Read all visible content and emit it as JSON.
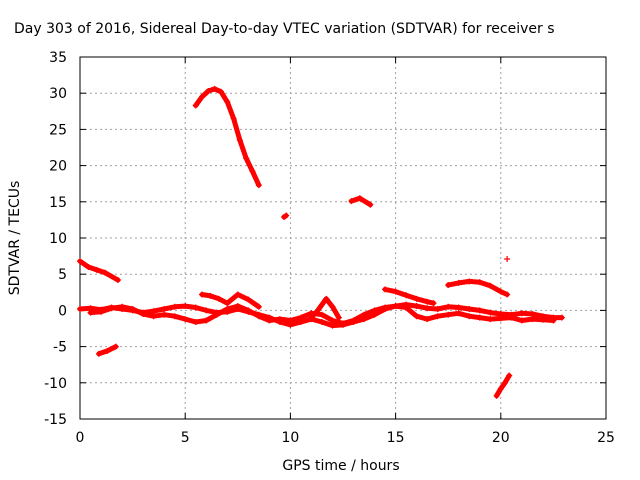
{
  "chart_data": {
    "type": "scatter",
    "title": "Day 303 of 2016, Sidereal Day-to-day VTEC variation (SDTVAR) for receiver s",
    "xlabel": "GPS time / hours",
    "ylabel": "SDTVAR / TECUs",
    "xlim": [
      0,
      25
    ],
    "ylim": [
      -15,
      35
    ],
    "xticks": [
      "0",
      "5",
      "10",
      "15",
      "20",
      "25"
    ],
    "yticks": [
      "-15",
      "-10",
      "-5",
      "0",
      "5",
      "10",
      "15",
      "20",
      "25",
      "30",
      "35"
    ],
    "grid": true,
    "marker": "+",
    "marker_color": "#ff0000",
    "segments": [
      {
        "x": [
          0.0,
          0.4,
          0.8,
          1.2,
          1.8
        ],
        "y": [
          6.8,
          6.0,
          5.6,
          5.2,
          4.2
        ]
      },
      {
        "x": [
          0.9,
          1.3,
          1.7
        ],
        "y": [
          -6.0,
          -5.6,
          -5.0
        ]
      },
      {
        "x": [
          5.5,
          5.8,
          6.1,
          6.4,
          6.7,
          7.0,
          7.3,
          7.6,
          7.9,
          8.2,
          8.5
        ],
        "y": [
          28.3,
          29.5,
          30.3,
          30.6,
          30.2,
          28.8,
          26.5,
          23.5,
          21.0,
          19.2,
          17.3
        ]
      },
      {
        "x": [
          9.7,
          9.8
        ],
        "y": [
          12.9,
          13.1
        ]
      },
      {
        "x": [
          12.9,
          13.3,
          13.8
        ],
        "y": [
          15.1,
          15.5,
          14.6
        ]
      },
      {
        "x": [
          20.3
        ],
        "y": [
          7.1
        ]
      },
      {
        "x": [
          19.8,
          20.0,
          20.2,
          20.4
        ],
        "y": [
          -11.8,
          -10.8,
          -10.0,
          -9.0
        ]
      },
      {
        "x": [
          17.5,
          18.0,
          18.5,
          19.0,
          19.5,
          20.0,
          20.3
        ],
        "y": [
          3.5,
          3.8,
          4.0,
          3.9,
          3.4,
          2.6,
          2.2
        ]
      },
      {
        "x": [
          14.5,
          15.0,
          15.5,
          16.0,
          16.5,
          16.8
        ],
        "y": [
          2.9,
          2.6,
          2.1,
          1.6,
          1.2,
          1.0
        ]
      },
      {
        "x": [
          5.8,
          6.2,
          6.6,
          7.0,
          7.5,
          8.0,
          8.5
        ],
        "y": [
          2.2,
          2.0,
          1.6,
          1.0,
          2.2,
          1.5,
          0.5
        ]
      },
      {
        "x": [
          11.0,
          11.3,
          11.7,
          12.0,
          12.3
        ],
        "y": [
          -1.0,
          0.0,
          1.6,
          0.5,
          -1.0
        ]
      },
      {
        "x": [
          0.0,
          0.5,
          1.0,
          1.5,
          2.0,
          2.5,
          3.0,
          3.5,
          4.0,
          4.5,
          5.0,
          5.5,
          6.0,
          6.5,
          7.0,
          7.5,
          8.0,
          8.5,
          9.0,
          9.5,
          10.0,
          10.5,
          11.0,
          11.5,
          12.0,
          12.5,
          13.0,
          13.5,
          14.0,
          14.5,
          15.0,
          15.5,
          16.0,
          16.5,
          17.0,
          17.5,
          18.0,
          18.5,
          19.0,
          19.5,
          20.0,
          20.5,
          21.0,
          21.5,
          22.0,
          22.5,
          22.9
        ],
        "y": [
          0.2,
          0.3,
          0.1,
          0.4,
          0.2,
          0.0,
          -0.3,
          -0.1,
          0.2,
          0.5,
          0.6,
          0.4,
          0.0,
          -0.3,
          -0.2,
          0.2,
          -0.2,
          -0.6,
          -1.0,
          -1.6,
          -2.0,
          -1.6,
          -1.2,
          -1.6,
          -2.1,
          -2.0,
          -1.6,
          -1.2,
          -0.6,
          0.2,
          0.6,
          0.8,
          0.6,
          0.3,
          0.2,
          0.5,
          0.4,
          0.2,
          0.0,
          -0.3,
          -0.5,
          -0.6,
          -0.4,
          -0.5,
          -0.8,
          -1.0,
          -1.0
        ]
      },
      {
        "x": [
          0.5,
          1.0,
          1.5,
          2.0,
          2.5,
          3.0,
          3.5,
          4.0,
          4.5,
          5.0,
          5.5,
          6.0,
          6.5,
          7.0,
          7.5,
          8.0,
          8.5,
          9.0,
          9.5,
          10.0,
          10.5,
          11.0,
          11.5,
          12.0,
          12.5,
          13.0,
          13.5,
          14.0,
          14.5,
          15.0,
          15.5,
          16.0,
          16.5,
          17.0,
          17.5,
          18.0,
          18.5,
          19.0,
          19.5,
          20.0,
          20.5,
          21.0,
          21.5,
          22.0,
          22.5
        ],
        "y": [
          -0.3,
          -0.2,
          0.3,
          0.5,
          0.2,
          -0.5,
          -0.8,
          -0.6,
          -0.8,
          -1.2,
          -1.6,
          -1.4,
          -0.6,
          0.2,
          0.6,
          0.0,
          -0.8,
          -1.4,
          -1.2,
          -1.4,
          -1.0,
          -0.4,
          -0.6,
          -1.4,
          -1.8,
          -1.4,
          -0.6,
          0.0,
          0.4,
          0.6,
          0.4,
          -0.8,
          -1.2,
          -0.8,
          -0.6,
          -0.4,
          -0.8,
          -1.0,
          -1.2,
          -1.1,
          -1.0,
          -1.4,
          -1.2,
          -1.3,
          -1.4
        ]
      }
    ]
  }
}
